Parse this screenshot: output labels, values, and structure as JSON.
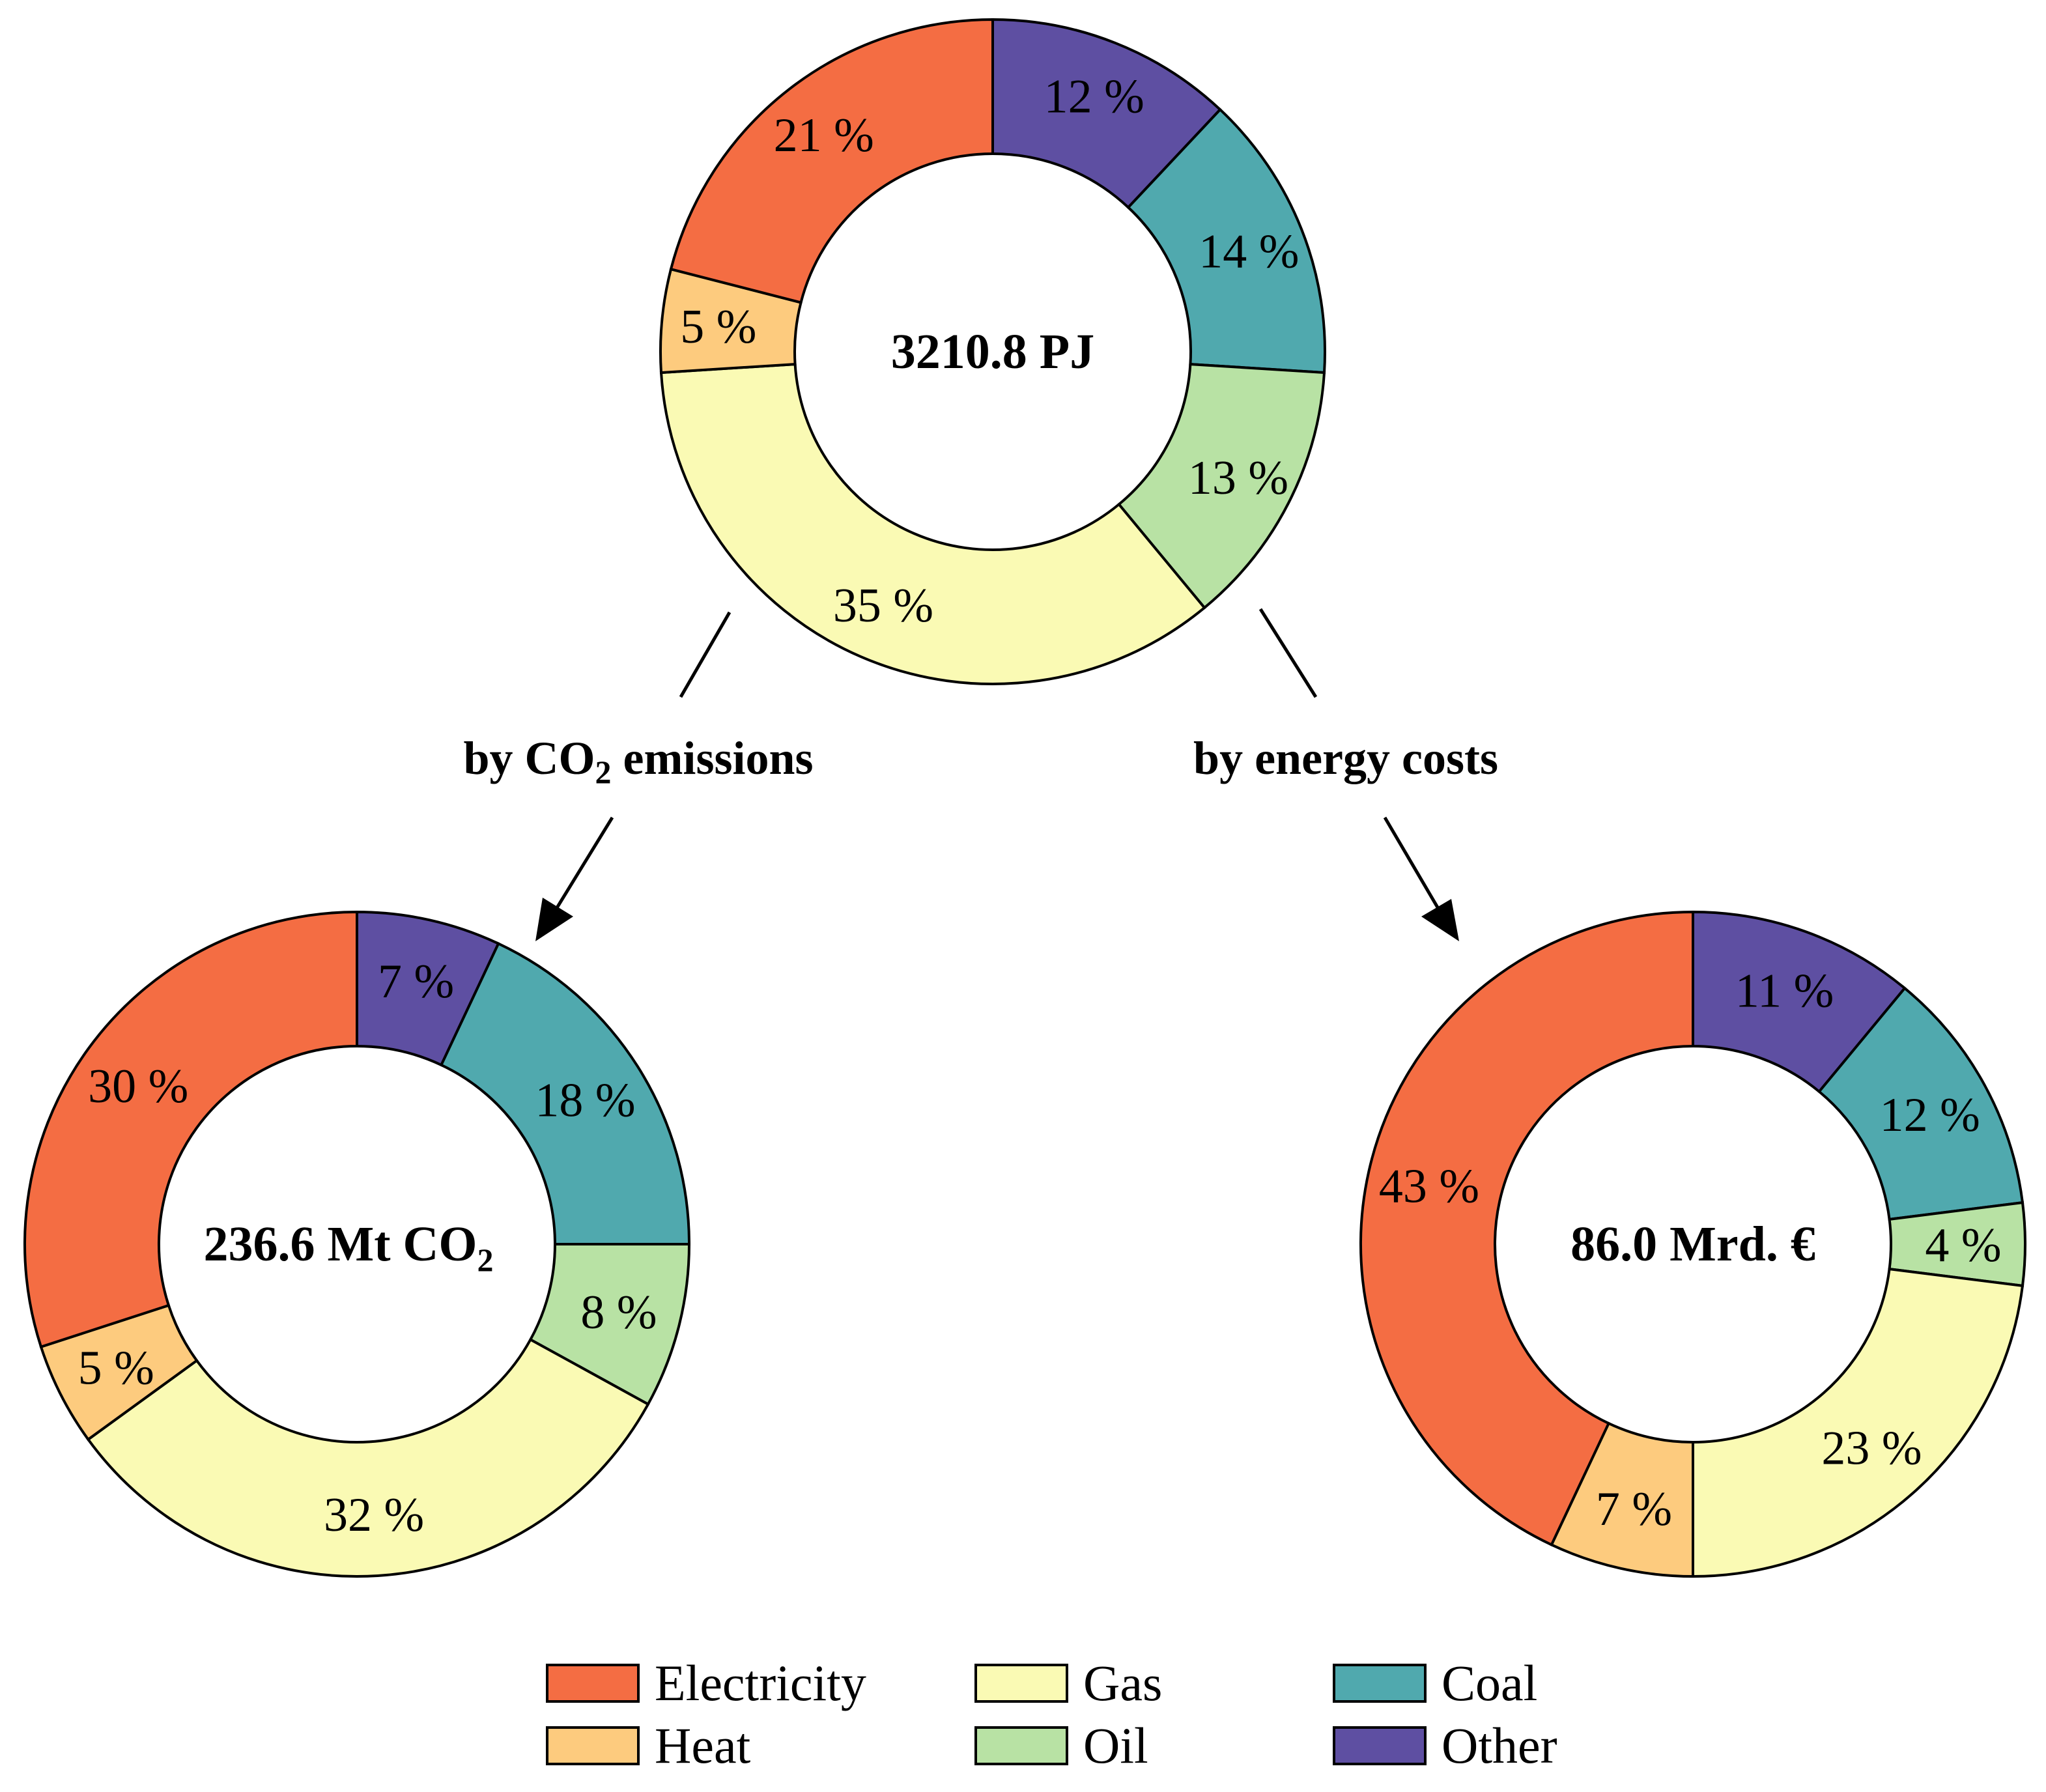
{
  "colors": {
    "Electricity": "#F46D43",
    "Heat": "#FDCB7E",
    "Gas": "#FAFAB4",
    "Oil": "#B8E2A4",
    "Coal": "#50A9AE",
    "Other": "#5E4FA2"
  },
  "chart_data": [
    {
      "type": "pie",
      "name": "final-energy",
      "center_label": "3210.8 PJ",
      "categories": [
        "Other",
        "Coal",
        "Oil",
        "Gas",
        "Heat",
        "Electricity"
      ],
      "values": [
        12,
        14,
        13,
        35,
        5,
        21
      ],
      "labels": [
        "12 %",
        "14 %",
        "13 %",
        "35 %",
        "5 %",
        "21 %"
      ]
    },
    {
      "type": "pie",
      "name": "co2-emissions",
      "center_label": {
        "main": "236.6 Mt CO",
        "sub": "2"
      },
      "categories": [
        "Other",
        "Coal",
        "Oil",
        "Gas",
        "Heat",
        "Electricity"
      ],
      "values": [
        7,
        18,
        8,
        32,
        5,
        30
      ],
      "labels": [
        "7 %",
        "18 %",
        "8 %",
        "32 %",
        "5 %",
        "30 %"
      ]
    },
    {
      "type": "pie",
      "name": "energy-costs",
      "center_label": "86.0 Mrd. €",
      "categories": [
        "Other",
        "Coal",
        "Oil",
        "Gas",
        "Heat",
        "Electricity"
      ],
      "values": [
        11,
        12,
        4,
        23,
        7,
        43
      ],
      "labels": [
        "11 %",
        "12 %",
        "4 %",
        "23 %",
        "7 %",
        "43 %"
      ]
    }
  ],
  "branches": {
    "co2": {
      "prefix": "by CO",
      "sub": "2",
      "suffix": " emissions"
    },
    "costs": {
      "text": "by energy costs"
    }
  },
  "legend": [
    "Electricity",
    "Heat",
    "Gas",
    "Oil",
    "Coal",
    "Other"
  ]
}
